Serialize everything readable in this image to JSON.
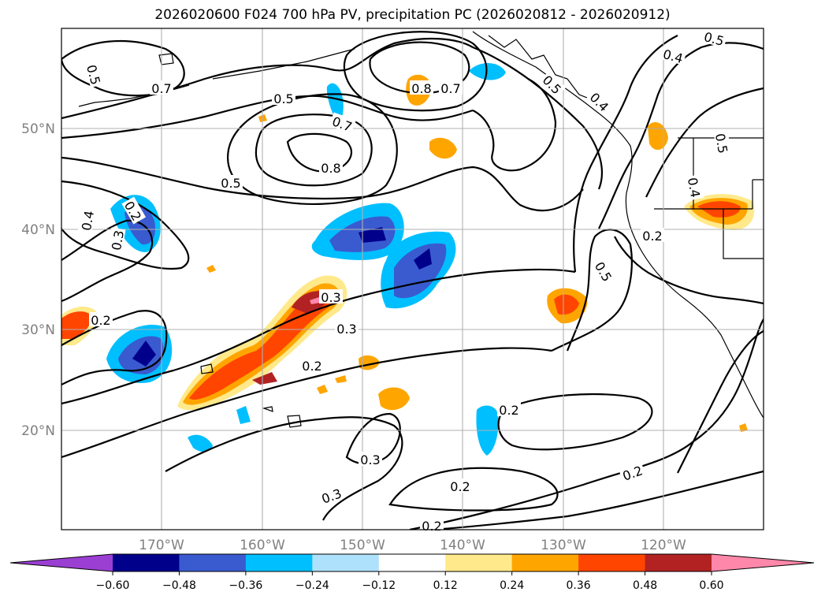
{
  "title": "2026020600 F024 700 hPa PV, precipitation PC (2026020812 - 2026020912)",
  "lat_labels": [
    "50°N",
    "40°N",
    "30°N",
    "20°N"
  ],
  "lon_labels": [
    "170°W",
    "160°W",
    "150°W",
    "140°W",
    "130°W",
    "120°W"
  ],
  "contour_labels": [
    "0.5",
    "0.7",
    "0.5",
    "0.8",
    "0.7",
    "0.7",
    "0.8",
    "0.5",
    "0.4",
    "0.3",
    "0.2",
    "0.3",
    "0.2",
    "0.3",
    "0.3",
    "0.3",
    "0.2",
    "0.2",
    "0.5",
    "0.2",
    "0.4",
    "0.5",
    "0.4",
    "0.5",
    "0.4",
    "0.2",
    "0.2",
    "0.2",
    "0.5"
  ],
  "colorbar": {
    "ticks": [
      "−0.60",
      "−0.48",
      "−0.36",
      "−0.24",
      "−0.12",
      "0.12",
      "0.24",
      "0.36",
      "0.48",
      "0.60"
    ],
    "colors": [
      "#9b3fd3",
      "#00008b",
      "#3a5bcf",
      "#00bfff",
      "#aee1fb",
      "#ffffff",
      "#ffe98a",
      "#ffa500",
      "#ff4500",
      "#b22222",
      "#ff88aa",
      "#ff88aa"
    ]
  }
}
